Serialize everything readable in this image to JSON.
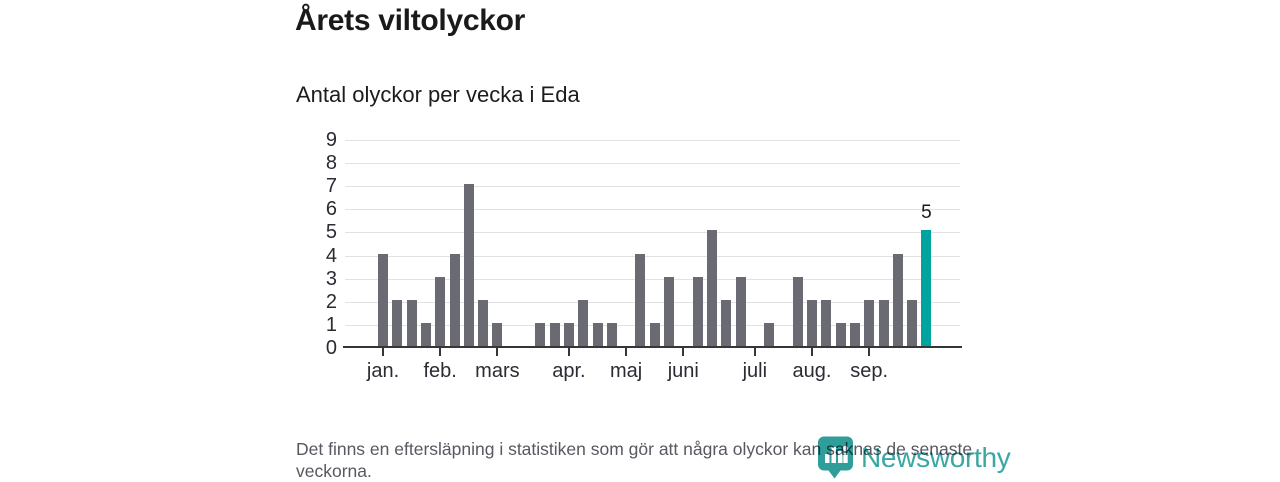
{
  "header": {
    "title": "Årets viltolyckor",
    "subtitle": "Antal olyckor per vecka i Eda"
  },
  "footer": {
    "note": "Det finns en eftersläpning i statistiken som gör att några olyckor kan saknas de senaste veckorna."
  },
  "branding": {
    "logo_text": "Newsworthy",
    "logo_icon": "bar-chart-pin-icon",
    "logo_color": "#3aa7a3"
  },
  "colors": {
    "bar": "#6a6a73",
    "highlight": "#00a39e",
    "grid": "#e2e2e2",
    "axis": "#363636",
    "text": "#1a1a1a",
    "muted": "#585860"
  },
  "chart_data": {
    "type": "bar",
    "title": "Årets viltolyckor",
    "subtitle": "Antal olyckor per vecka i Eda",
    "x_unit": "vecka",
    "week_numbers": [
      1,
      2,
      3,
      4,
      5,
      6,
      7,
      8,
      9,
      10,
      11,
      12,
      13,
      14,
      15,
      16,
      17,
      18,
      19,
      20,
      21,
      22,
      23,
      24,
      25,
      26,
      27,
      28,
      29,
      30,
      31,
      32,
      33,
      34,
      35,
      36,
      37,
      38,
      39
    ],
    "values": [
      4,
      2,
      2,
      1,
      3,
      4,
      7,
      2,
      1,
      0,
      0,
      1,
      1,
      1,
      2,
      1,
      1,
      0,
      4,
      1,
      3,
      0,
      3,
      5,
      2,
      3,
      0,
      1,
      0,
      3,
      2,
      2,
      1,
      1,
      2,
      2,
      4,
      2,
      5
    ],
    "highlight_index": 38,
    "highlight_label": "5",
    "month_ticks": [
      {
        "label": "jan.",
        "week": 1
      },
      {
        "label": "feb.",
        "week": 5
      },
      {
        "label": "mars",
        "week": 9
      },
      {
        "label": "apr.",
        "week": 14
      },
      {
        "label": "maj",
        "week": 18
      },
      {
        "label": "juni",
        "week": 22
      },
      {
        "label": "juli",
        "week": 27
      },
      {
        "label": "aug.",
        "week": 31
      },
      {
        "label": "sep.",
        "week": 35
      }
    ],
    "ylim": [
      0,
      9
    ],
    "yticks": [
      0,
      1,
      2,
      3,
      4,
      5,
      6,
      7,
      8,
      9
    ],
    "grid": true,
    "legend": "none"
  }
}
